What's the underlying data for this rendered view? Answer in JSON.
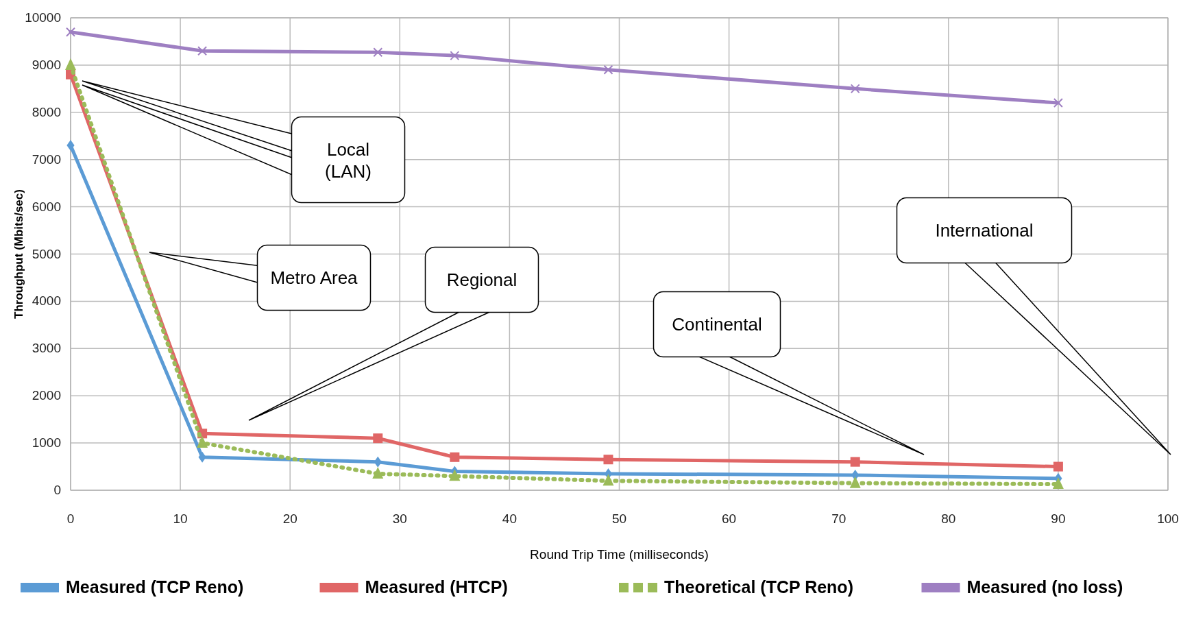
{
  "chart_data": {
    "type": "line",
    "xlabel": "Round Trip Time (milliseconds)",
    "ylabel": "Throughput (Mbits/sec)",
    "x": [
      0,
      12,
      28,
      35,
      49,
      71.5,
      90
    ],
    "series": [
      {
        "name": "Measured (TCP Reno)",
        "color": "#5b9bd5",
        "marker": "diamond",
        "line_style": "solid",
        "values": [
          7300,
          700,
          600,
          400,
          350,
          320,
          250
        ]
      },
      {
        "name": "Measured (HTCP)",
        "color": "#e06666",
        "marker": "square",
        "line_style": "solid",
        "values": [
          8800,
          1200,
          1100,
          700,
          650,
          600,
          500
        ]
      },
      {
        "name": "Theoretical (TCP Reno)",
        "color": "#9bbb59",
        "marker": "triangle",
        "line_style": "dotted",
        "values": [
          9000,
          1000,
          350,
          300,
          200,
          150,
          130
        ]
      },
      {
        "name": "Measured (no loss)",
        "color": "#9e7fc2",
        "marker": "cross",
        "line_style": "solid",
        "values": [
          9700,
          9300,
          9270,
          9200,
          8900,
          8500,
          8200
        ]
      }
    ],
    "xlim": [
      0,
      100
    ],
    "xticks": [
      0,
      10,
      20,
      30,
      40,
      50,
      60,
      70,
      80,
      90,
      100
    ],
    "ylim": [
      0,
      10000
    ],
    "yticks": [
      0,
      1000,
      2000,
      3000,
      4000,
      5000,
      6000,
      7000,
      8000,
      9000,
      10000
    ],
    "grid": true,
    "legend": "bottom",
    "annotations": [
      "Local (LAN)",
      "Metro Area",
      "Regional",
      "Continental",
      "International"
    ]
  }
}
